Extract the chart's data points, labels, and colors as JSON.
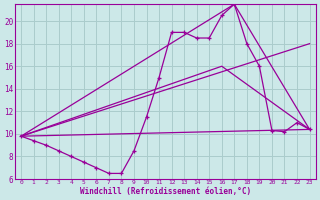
{
  "xlabel": "Windchill (Refroidissement éolien,°C)",
  "bg_color": "#cce8e8",
  "grid_color": "#aacccc",
  "line_color": "#990099",
  "xlim": [
    -0.5,
    23.5
  ],
  "ylim": [
    6,
    21.5
  ],
  "xticks": [
    0,
    1,
    2,
    3,
    4,
    5,
    6,
    7,
    8,
    9,
    10,
    11,
    12,
    13,
    14,
    15,
    16,
    17,
    18,
    19,
    20,
    21,
    22,
    23
  ],
  "yticks": [
    6,
    8,
    10,
    12,
    14,
    16,
    18,
    20
  ],
  "series1_x": [
    0,
    1,
    2,
    3,
    4,
    5,
    6,
    7,
    8,
    9,
    10,
    11,
    12,
    13,
    14,
    15,
    16,
    17,
    18,
    19,
    20,
    21,
    22,
    23
  ],
  "series1_y": [
    9.8,
    9.4,
    9.0,
    8.5,
    8.0,
    7.5,
    7.0,
    6.5,
    6.5,
    8.5,
    11.5,
    15.0,
    19.0,
    19.0,
    18.5,
    18.5,
    20.5,
    21.5,
    18.0,
    16.0,
    10.3,
    10.2,
    11.0,
    10.4
  ],
  "line2_x": [
    0,
    23
  ],
  "line2_y": [
    9.8,
    18.0
  ],
  "line3_x": [
    0,
    23
  ],
  "line3_y": [
    9.8,
    10.4
  ],
  "line4_x": [
    0,
    16,
    23
  ],
  "line4_y": [
    9.8,
    16.0,
    10.4
  ],
  "line5_x": [
    0,
    17,
    23
  ],
  "line5_y": [
    9.8,
    21.5,
    10.4
  ]
}
